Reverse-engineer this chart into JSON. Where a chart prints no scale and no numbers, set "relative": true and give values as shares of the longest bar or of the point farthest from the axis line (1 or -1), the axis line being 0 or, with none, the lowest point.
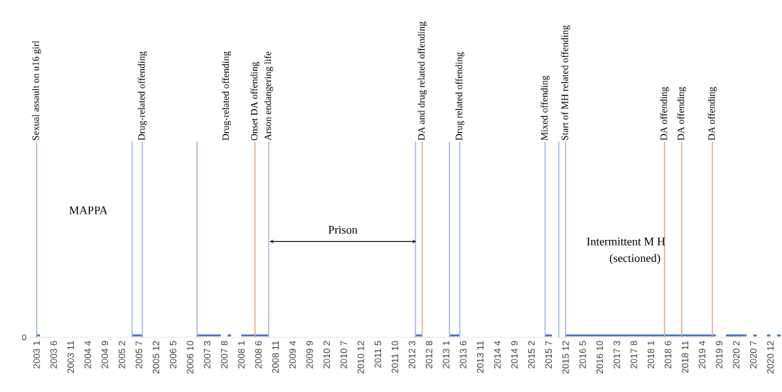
{
  "chart_data": {
    "type": "bar",
    "relative": true,
    "xlim": [
      "2002-11",
      "2021-03"
    ],
    "xticks": [
      {
        "value": "2003-01",
        "label": "2003 1"
      },
      {
        "value": "2003-06",
        "label": "2003 6"
      },
      {
        "value": "2003-11",
        "label": "2003 11"
      },
      {
        "value": "2004-04",
        "label": "2004 4"
      },
      {
        "value": "2004-09",
        "label": "2004 9"
      },
      {
        "value": "2005-02",
        "label": "2005 2"
      },
      {
        "value": "2005-07",
        "label": "2005 7"
      },
      {
        "value": "2005-12",
        "label": "2005 12"
      },
      {
        "value": "2006-05",
        "label": "2006 5"
      },
      {
        "value": "2006-10",
        "label": "2006 10"
      },
      {
        "value": "2007-03",
        "label": "2007 3"
      },
      {
        "value": "2007-08",
        "label": "2007 8"
      },
      {
        "value": "2008-01",
        "label": "2008 1"
      },
      {
        "value": "2008-06",
        "label": "2008 6"
      },
      {
        "value": "2008-11",
        "label": "2008 11"
      },
      {
        "value": "2009-04",
        "label": "2009 4"
      },
      {
        "value": "2009-09",
        "label": "2009 9"
      },
      {
        "value": "2010-02",
        "label": "2010 2"
      },
      {
        "value": "2010-07",
        "label": "2010 7"
      },
      {
        "value": "2010-12",
        "label": "2010 12"
      },
      {
        "value": "2011-05",
        "label": "2011 5"
      },
      {
        "value": "2011-10",
        "label": "2011 10"
      },
      {
        "value": "2012-03",
        "label": "2012 3"
      },
      {
        "value": "2012-08",
        "label": "2012 8"
      },
      {
        "value": "2013-01",
        "label": "2013 1"
      },
      {
        "value": "2013-06",
        "label": "2013 6"
      },
      {
        "value": "2013-11",
        "label": "2013 11"
      },
      {
        "value": "2014-04",
        "label": "2014 4"
      },
      {
        "value": "2014-09",
        "label": "2014 9"
      },
      {
        "value": "2015-02",
        "label": "2015 2"
      },
      {
        "value": "2015-07",
        "label": "2015 7"
      },
      {
        "value": "2015-12",
        "label": "2015 12"
      },
      {
        "value": "2016-05",
        "label": "2016 5"
      },
      {
        "value": "2016-10",
        "label": "2016 10"
      },
      {
        "value": "2017-03",
        "label": "2017 3"
      },
      {
        "value": "2017-08",
        "label": "2017 8"
      },
      {
        "value": "2018-01",
        "label": "2018 1"
      },
      {
        "value": "2018-06",
        "label": "2018 6"
      },
      {
        "value": "2018-11",
        "label": "2018 11"
      },
      {
        "value": "2019-04",
        "label": "2019 4"
      },
      {
        "value": "2019-09",
        "label": "2019 9"
      },
      {
        "value": "2020-02",
        "label": "2020 2"
      },
      {
        "value": "2020-07",
        "label": "2020 7"
      },
      {
        "value": "2020-12",
        "label": "2020 12"
      }
    ],
    "series": [
      {
        "type": "line",
        "color": "#4472c4",
        "x": [
          "2003-01",
          "2003-02"
        ],
        "values": [
          0.01,
          0.01
        ]
      },
      {
        "type": "line",
        "color": "#4472c4",
        "x": [
          "2005-05",
          "2005-08"
        ],
        "values": [
          0.01,
          0.01
        ]
      },
      {
        "type": "line",
        "color": "#4472c4",
        "x": [
          "2006-12",
          "2007-07"
        ],
        "values": [
          0.01,
          0.01
        ]
      },
      {
        "type": "line",
        "color": "#4472c4",
        "x": [
          "2007-09",
          "2007-10"
        ],
        "values": [
          0.01,
          0.01
        ]
      },
      {
        "type": "line",
        "color": "#4472c4",
        "x": [
          "2008-01",
          "2008-09"
        ],
        "values": [
          0.01,
          0.01
        ]
      },
      {
        "type": "line",
        "color": "#4472c4",
        "x": [
          "2012-04",
          "2012-06"
        ],
        "values": [
          0.01,
          0.01
        ]
      },
      {
        "type": "line",
        "color": "#4472c4",
        "x": [
          "2013-02",
          "2013-05"
        ],
        "values": [
          0.01,
          0.01
        ]
      },
      {
        "type": "line",
        "color": "#4472c4",
        "x": [
          "2015-06",
          "2015-08"
        ],
        "values": [
          0.01,
          0.01
        ]
      },
      {
        "type": "line",
        "color": "#4472c4",
        "x": [
          "2015-12",
          "2019-08"
        ],
        "values": [
          0.01,
          0.01
        ]
      },
      {
        "type": "line",
        "color": "#4472c4",
        "x": [
          "2019-11",
          "2020-05"
        ],
        "values": [
          0.01,
          0.01
        ]
      },
      {
        "type": "line",
        "color": "#4472c4",
        "x": [
          "2020-07",
          "2020-08"
        ],
        "values": [
          0.01,
          0.01
        ]
      },
      {
        "type": "line",
        "color": "#4472c4",
        "x": [
          "2020-11",
          "2020-12"
        ],
        "values": [
          0.01,
          0.01
        ]
      },
      {
        "type": "line",
        "color": "#4472c4",
        "x": [
          "2021-02",
          "2021-03"
        ],
        "values": [
          0.01,
          0.01
        ]
      },
      {
        "color": "#a4b6e6",
        "x": [
          "2003-01",
          "2005-05",
          "2005-08",
          "2006-12",
          "2008-09",
          "2012-04",
          "2013-02",
          "2013-05",
          "2015-06",
          "2015-10",
          "2015-12"
        ],
        "values": [
          1,
          1,
          1,
          1,
          1,
          1,
          1,
          1,
          1,
          1,
          1
        ]
      },
      {
        "color": "#e9a592",
        "x": [
          "2008-05",
          "2012-06",
          "2018-05",
          "2018-10",
          "2019-07"
        ],
        "values": [
          1,
          1,
          1,
          1,
          1
        ]
      }
    ],
    "annotations": [
      {
        "text": "Sexual assault on u16 girl",
        "x": "2003-01",
        "y": 1
      },
      {
        "text": "Drug-related offending",
        "x": "2005-08",
        "y": 1
      },
      "Drug-related offending",
      {
        "text": "Onset DA offending",
        "x": "2008-05",
        "y": 1
      },
      {
        "text": "Arson endangering life",
        "x": "2008-09",
        "y": 1
      },
      {
        "text": "DA and drug related offending",
        "x": "2012-06",
        "y": 1
      },
      {
        "text": "Drug related offending",
        "x": "2013-05",
        "y": 1
      },
      {
        "text": "Mixed offending",
        "x": "2015-06",
        "y": 1
      },
      {
        "text": "Start of MH related offending",
        "x": "2015-12",
        "y": 1
      },
      {
        "text": "DA offending",
        "x": "2018-05",
        "y": 1
      },
      {
        "text": "DA offending",
        "x": "2018-10",
        "y": 1
      },
      {
        "text": "DA offending",
        "x": "2019-07",
        "y": 1
      },
      "MAPPA",
      "Prison",
      "Intermittent  M H",
      "(sectioned)",
      "0"
    ]
  }
}
